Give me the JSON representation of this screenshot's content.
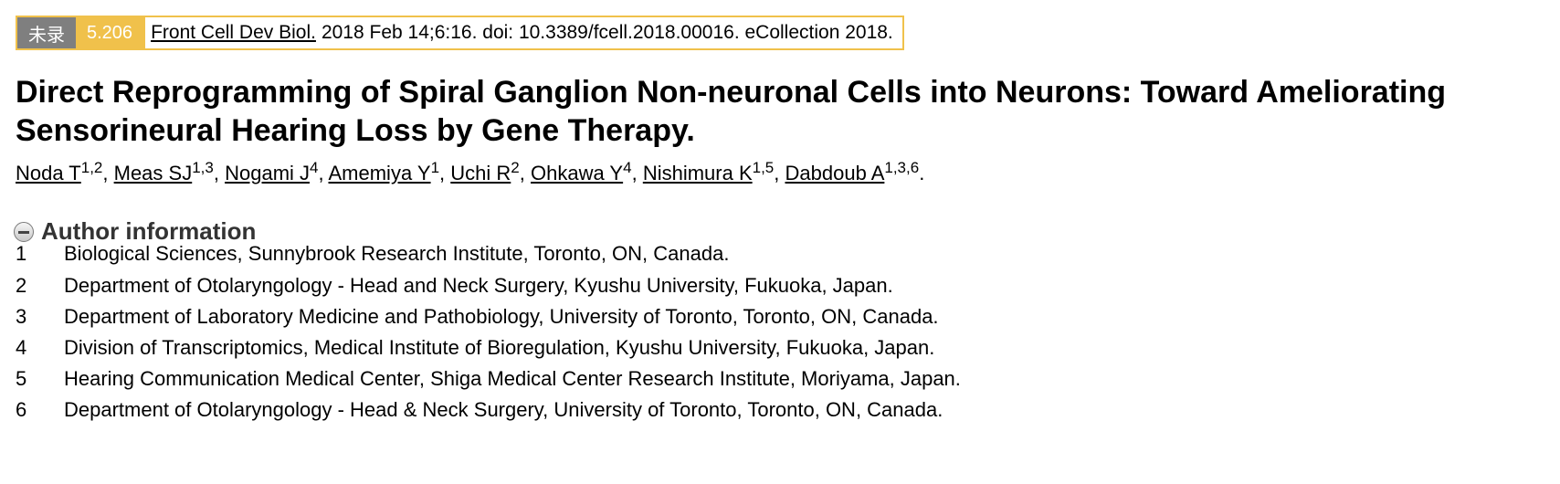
{
  "citation": {
    "status_label": "未录",
    "impact_factor": "5.206",
    "journal": "Front Cell Dev Biol.",
    "details": "2018 Feb 14;6:16. doi: 10.3389/fcell.2018.00016. eCollection 2018."
  },
  "article": {
    "title": "Direct Reprogramming of Spiral Ganglion Non-neuronal Cells into Neurons: Toward Ameliorating Sensorineural Hearing Loss by Gene Therapy."
  },
  "authors": [
    {
      "name": "Noda T",
      "affil": "1,2"
    },
    {
      "name": "Meas SJ",
      "affil": "1,3"
    },
    {
      "name": "Nogami J",
      "affil": "4"
    },
    {
      "name": "Amemiya Y",
      "affil": "1"
    },
    {
      "name": "Uchi R",
      "affil": "2"
    },
    {
      "name": "Ohkawa Y",
      "affil": "4"
    },
    {
      "name": "Nishimura K",
      "affil": "1,5"
    },
    {
      "name": "Dabdoub A",
      "affil": "1,3,6"
    }
  ],
  "author_info": {
    "label": "Author information",
    "icon": "collapse-minus-icon"
  },
  "affiliations": [
    {
      "num": "1",
      "text": "Biological Sciences, Sunnybrook Research Institute, Toronto, ON, Canada."
    },
    {
      "num": "2",
      "text": "Department of Otolaryngology - Head and Neck Surgery, Kyushu University, Fukuoka, Japan."
    },
    {
      "num": "3",
      "text": "Department of Laboratory Medicine and Pathobiology, University of Toronto, Toronto, ON, Canada."
    },
    {
      "num": "4",
      "text": "Division of Transcriptomics, Medical Institute of Bioregulation, Kyushu University, Fukuoka, Japan."
    },
    {
      "num": "5",
      "text": "Hearing Communication Medical Center, Shiga Medical Center Research Institute, Moriyama, Japan."
    },
    {
      "num": "6",
      "text": "Department of Otolaryngology - Head & Neck Surgery, University of Toronto, Toronto, ON, Canada."
    }
  ],
  "colors": {
    "badge_gray": "#7f7f7f",
    "badge_yellow": "#f0c14b"
  }
}
